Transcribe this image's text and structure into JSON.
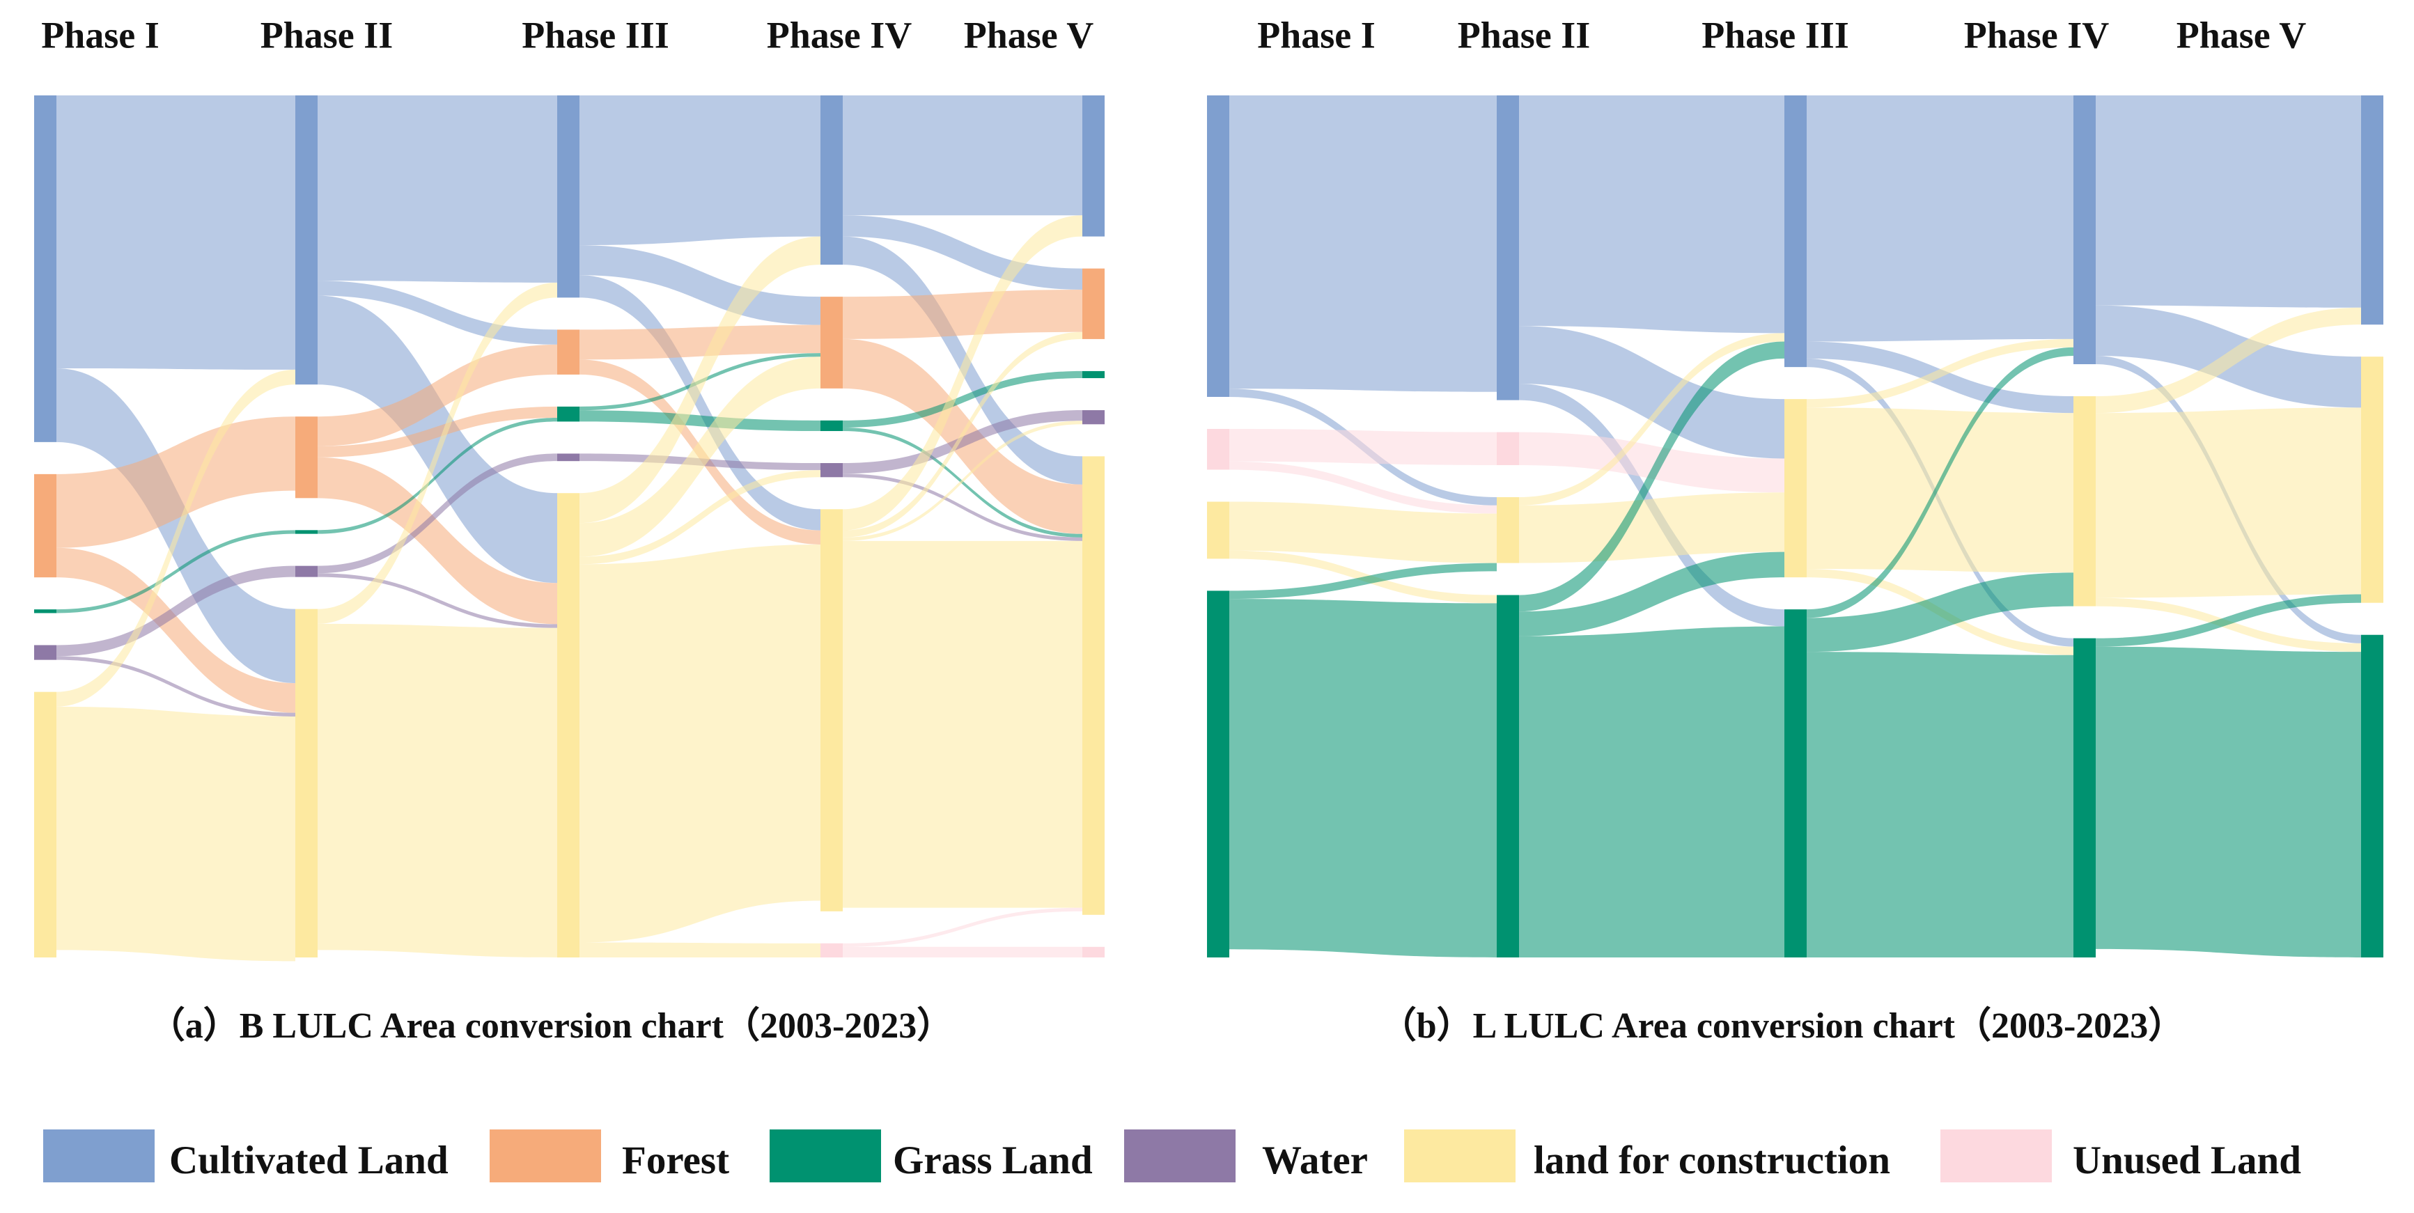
{
  "chart_data": [
    {
      "type": "sankey",
      "title": "（a）B  LULC Area conversion chart（2003-2023）",
      "categories": [
        "Phase I",
        "Phase II",
        "Phase III",
        "Phase IV",
        "Phase V"
      ],
      "nodes": [
        [
          {
            "class": 0,
            "value": 47
          },
          {
            "class": 1,
            "value": 14
          },
          {
            "class": 2,
            "value": 0.5
          },
          {
            "class": 3,
            "value": 2
          },
          {
            "class": 4,
            "value": 36
          }
        ],
        [
          {
            "class": 0,
            "value": 39
          },
          {
            "class": 1,
            "value": 11
          },
          {
            "class": 2,
            "value": 0.5
          },
          {
            "class": 3,
            "value": 1.5
          },
          {
            "class": 4,
            "value": 47
          }
        ],
        [
          {
            "class": 0,
            "value": 27
          },
          {
            "class": 1,
            "value": 6
          },
          {
            "class": 2,
            "value": 2
          },
          {
            "class": 3,
            "value": 1
          },
          {
            "class": 4,
            "value": 62
          }
        ],
        [
          {
            "class": 0,
            "value": 24
          },
          {
            "class": 1,
            "value": 13
          },
          {
            "class": 2,
            "value": 1.5
          },
          {
            "class": 3,
            "value": 2
          },
          {
            "class": 4,
            "value": 57
          },
          {
            "class": 5,
            "value": 2
          }
        ],
        [
          {
            "class": 0,
            "value": 20
          },
          {
            "class": 1,
            "value": 10
          },
          {
            "class": 2,
            "value": 1
          },
          {
            "class": 3,
            "value": 2
          },
          {
            "class": 4,
            "value": 65
          },
          {
            "class": 5,
            "value": 1.5
          }
        ]
      ],
      "flows": [
        [
          {
            "from": 0,
            "to": 0,
            "value": 37
          },
          {
            "from": 0,
            "to": 4,
            "value": 10
          },
          {
            "from": 1,
            "to": 1,
            "value": 10
          },
          {
            "from": 1,
            "to": 4,
            "value": 4
          },
          {
            "from": 2,
            "to": 2,
            "value": 0.5
          },
          {
            "from": 3,
            "to": 3,
            "value": 1.5
          },
          {
            "from": 3,
            "to": 4,
            "value": 0.5
          },
          {
            "from": 4,
            "to": 0,
            "value": 2
          },
          {
            "from": 4,
            "to": 4,
            "value": 33
          }
        ],
        [
          {
            "from": 0,
            "to": 0,
            "value": 25
          },
          {
            "from": 0,
            "to": 1,
            "value": 2
          },
          {
            "from": 0,
            "to": 4,
            "value": 12
          },
          {
            "from": 1,
            "to": 1,
            "value": 4
          },
          {
            "from": 1,
            "to": 2,
            "value": 1.5
          },
          {
            "from": 1,
            "to": 4,
            "value": 5.5
          },
          {
            "from": 2,
            "to": 2,
            "value": 0.5
          },
          {
            "from": 3,
            "to": 3,
            "value": 1
          },
          {
            "from": 3,
            "to": 4,
            "value": 0.5
          },
          {
            "from": 4,
            "to": 0,
            "value": 2
          },
          {
            "from": 4,
            "to": 4,
            "value": 44
          }
        ],
        [
          {
            "from": 0,
            "to": 0,
            "value": 20
          },
          {
            "from": 0,
            "to": 1,
            "value": 4
          },
          {
            "from": 0,
            "to": 4,
            "value": 3
          },
          {
            "from": 1,
            "to": 1,
            "value": 4
          },
          {
            "from": 1,
            "to": 4,
            "value": 2
          },
          {
            "from": 2,
            "to": 1,
            "value": 0.5
          },
          {
            "from": 2,
            "to": 2,
            "value": 1.5
          },
          {
            "from": 3,
            "to": 3,
            "value": 1
          },
          {
            "from": 4,
            "to": 0,
            "value": 4
          },
          {
            "from": 4,
            "to": 1,
            "value": 4.5
          },
          {
            "from": 4,
            "to": 3,
            "value": 1
          },
          {
            "from": 4,
            "to": 4,
            "value": 50.5
          },
          {
            "from": 4,
            "to": 5,
            "value": 2
          }
        ],
        [
          {
            "from": 0,
            "to": 0,
            "value": 17
          },
          {
            "from": 0,
            "to": 1,
            "value": 3
          },
          {
            "from": 0,
            "to": 4,
            "value": 4
          },
          {
            "from": 1,
            "to": 1,
            "value": 6
          },
          {
            "from": 1,
            "to": 4,
            "value": 7
          },
          {
            "from": 2,
            "to": 2,
            "value": 1
          },
          {
            "from": 2,
            "to": 4,
            "value": 0.5
          },
          {
            "from": 3,
            "to": 3,
            "value": 1.5
          },
          {
            "from": 3,
            "to": 4,
            "value": 0.5
          },
          {
            "from": 4,
            "to": 0,
            "value": 3
          },
          {
            "from": 4,
            "to": 1,
            "value": 1
          },
          {
            "from": 4,
            "to": 3,
            "value": 0.5
          },
          {
            "from": 4,
            "to": 4,
            "value": 52
          },
          {
            "from": 5,
            "to": 4,
            "value": 0.5
          },
          {
            "from": 5,
            "to": 5,
            "value": 1.5
          }
        ]
      ]
    },
    {
      "type": "sankey",
      "title": "（b）L  LULC Area conversion chart（2003-2023）",
      "categories": [
        "Phase I",
        "Phase II",
        "Phase III",
        "Phase IV",
        "Phase V"
      ],
      "nodes": [
        [
          {
            "class": 0,
            "value": 37
          },
          {
            "class": 5,
            "value": 5
          },
          {
            "class": 4,
            "value": 7
          },
          {
            "class": 2,
            "value": 45
          }
        ],
        [
          {
            "class": 0,
            "value": 37
          },
          {
            "class": 5,
            "value": 4
          },
          {
            "class": 4,
            "value": 8
          },
          {
            "class": 2,
            "value": 44
          }
        ],
        [
          {
            "class": 0,
            "value": 32
          },
          {
            "class": 4,
            "value": 21
          },
          {
            "class": 2,
            "value": 41
          }
        ],
        [
          {
            "class": 0,
            "value": 32
          },
          {
            "class": 4,
            "value": 25
          },
          {
            "class": 2,
            "value": 38
          }
        ],
        [
          {
            "class": 0,
            "value": 27
          },
          {
            "class": 4,
            "value": 29
          },
          {
            "class": 2,
            "value": 38
          }
        ]
      ],
      "flows": [
        [
          {
            "from": 0,
            "to": 0,
            "value": 36
          },
          {
            "from": 0,
            "to": 4,
            "value": 1
          },
          {
            "from": 5,
            "to": 5,
            "value": 4
          },
          {
            "from": 5,
            "to": 4,
            "value": 1
          },
          {
            "from": 4,
            "to": 4,
            "value": 6
          },
          {
            "from": 4,
            "to": 2,
            "value": 1
          },
          {
            "from": 2,
            "to": 4,
            "value": 1
          },
          {
            "from": 2,
            "to": 2,
            "value": 43
          }
        ],
        [
          {
            "from": 0,
            "to": 0,
            "value": 28
          },
          {
            "from": 0,
            "to": 4,
            "value": 7
          },
          {
            "from": 0,
            "to": 2,
            "value": 2
          },
          {
            "from": 5,
            "to": 4,
            "value": 4
          },
          {
            "from": 4,
            "to": 0,
            "value": 1
          },
          {
            "from": 4,
            "to": 4,
            "value": 7
          },
          {
            "from": 2,
            "to": 0,
            "value": 2
          },
          {
            "from": 2,
            "to": 4,
            "value": 3
          },
          {
            "from": 2,
            "to": 2,
            "value": 39
          }
        ],
        [
          {
            "from": 0,
            "to": 0,
            "value": 29
          },
          {
            "from": 0,
            "to": 4,
            "value": 2
          },
          {
            "from": 0,
            "to": 2,
            "value": 1
          },
          {
            "from": 4,
            "to": 0,
            "value": 1
          },
          {
            "from": 4,
            "to": 4,
            "value": 19
          },
          {
            "from": 4,
            "to": 2,
            "value": 1
          },
          {
            "from": 2,
            "to": 0,
            "value": 1
          },
          {
            "from": 2,
            "to": 4,
            "value": 4
          },
          {
            "from": 2,
            "to": 2,
            "value": 36
          }
        ],
        [
          {
            "from": 0,
            "to": 0,
            "value": 25
          },
          {
            "from": 0,
            "to": 4,
            "value": 6
          },
          {
            "from": 0,
            "to": 2,
            "value": 1
          },
          {
            "from": 4,
            "to": 0,
            "value": 2
          },
          {
            "from": 4,
            "to": 4,
            "value": 22
          },
          {
            "from": 4,
            "to": 2,
            "value": 1
          },
          {
            "from": 2,
            "to": 4,
            "value": 1
          },
          {
            "from": 2,
            "to": 2,
            "value": 36
          }
        ]
      ]
    }
  ],
  "legend": [
    {
      "name": "Cultivated Land",
      "color": "#7f9fcf"
    },
    {
      "name": "Forest",
      "color": "#f6ab7a"
    },
    {
      "name": "Grass Land",
      "color": "#009270"
    },
    {
      "name": "Water",
      "color": "#8e79a6"
    },
    {
      "name": "land for construction",
      "color": "#fde9a0"
    },
    {
      "name": "Unused Land",
      "color": "#fdd9df"
    }
  ]
}
